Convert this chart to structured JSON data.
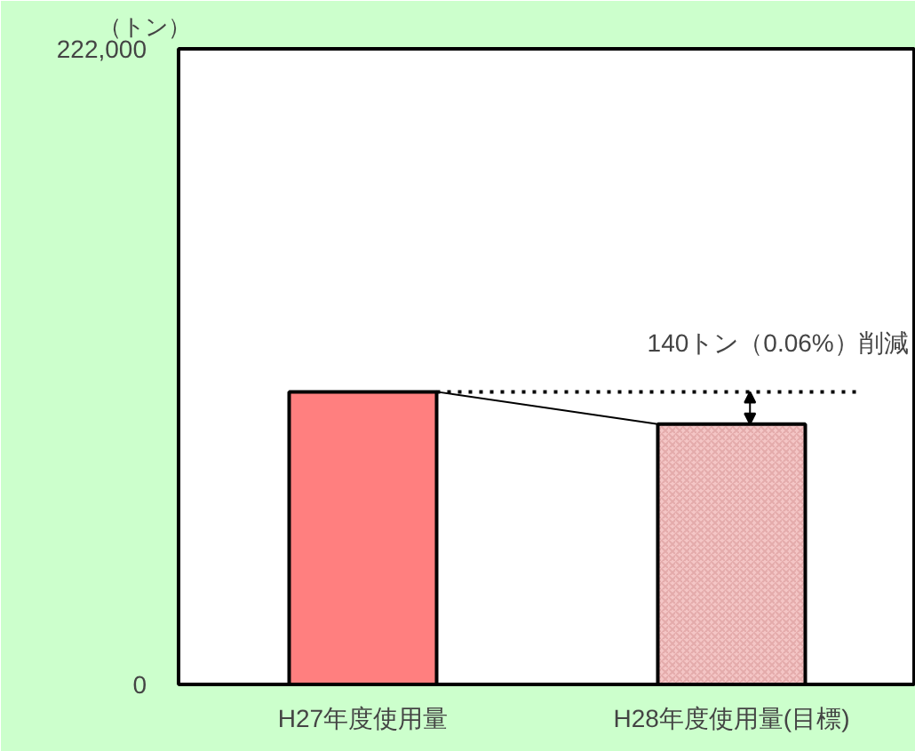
{
  "chart_data": {
    "type": "bar",
    "ylabel": "（トン）",
    "categories": [
      "H27年度使用量",
      "H28年度使用量(目標)"
    ],
    "values": [
      102200,
      90900
    ],
    "colors": [
      "#ff7f7f",
      "#f4c6c6"
    ],
    "ylim": [
      0,
      222000
    ],
    "yticks": [
      0,
      {
        "value": 222000,
        "label": "222,000"
      }
    ],
    "ref_lines": [
      {
        "axis": "y",
        "value": 102200,
        "line_style": "dotted",
        "color": "#000000"
      }
    ],
    "annotations": [
      "140トン（0.06%）削減"
    ],
    "grid": false
  }
}
